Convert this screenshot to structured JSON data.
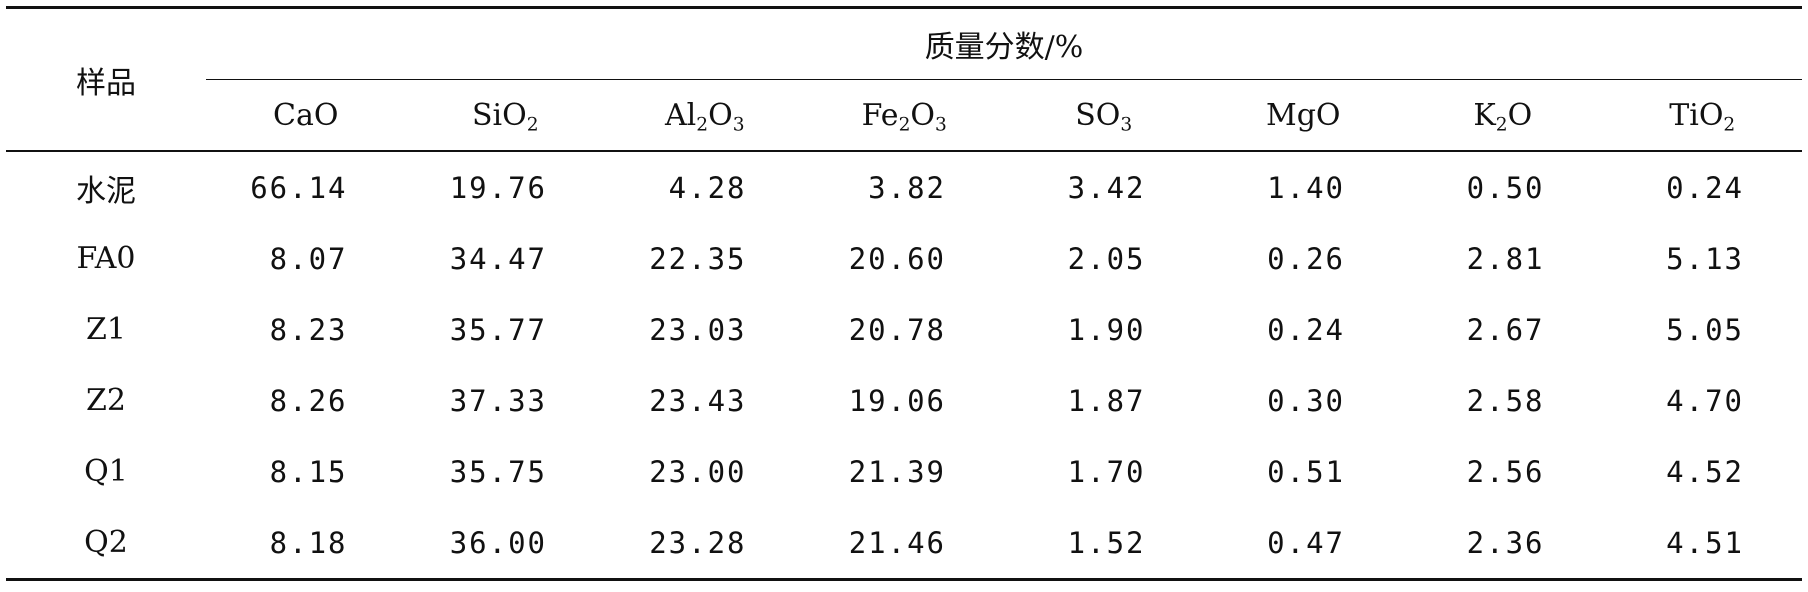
{
  "table": {
    "sample_header": "样品",
    "group_header": "质量分数/%",
    "columns": [
      {
        "base": "CaO",
        "sub": "",
        "tail": ""
      },
      {
        "base": "SiO",
        "sub": "2",
        "tail": ""
      },
      {
        "base": "Al",
        "sub": "2",
        "tail": "O",
        "sub2": "3"
      },
      {
        "base": "Fe",
        "sub": "2",
        "tail": "O",
        "sub2": "3"
      },
      {
        "base": "SO",
        "sub": "3",
        "tail": ""
      },
      {
        "base": "MgO",
        "sub": "",
        "tail": ""
      },
      {
        "base": "K",
        "sub": "2",
        "tail": "O"
      },
      {
        "base": "TiO",
        "sub": "2",
        "tail": ""
      }
    ],
    "rows": [
      {
        "sample": "水泥",
        "values": [
          "66.14",
          "19.76",
          "4.28",
          "3.82",
          "3.42",
          "1.40",
          "0.50",
          "0.24"
        ]
      },
      {
        "sample": "FA0",
        "values": [
          "8.07",
          "34.47",
          "22.35",
          "20.60",
          "2.05",
          "0.26",
          "2.81",
          "5.13"
        ]
      },
      {
        "sample": "Z1",
        "values": [
          "8.23",
          "35.77",
          "23.03",
          "20.78",
          "1.90",
          "0.24",
          "2.67",
          "5.05"
        ]
      },
      {
        "sample": "Z2",
        "values": [
          "8.26",
          "37.33",
          "23.43",
          "19.06",
          "1.87",
          "0.30",
          "2.58",
          "4.70"
        ]
      },
      {
        "sample": "Q1",
        "values": [
          "8.15",
          "35.75",
          "23.00",
          "21.39",
          "1.70",
          "0.51",
          "2.56",
          "4.52"
        ]
      },
      {
        "sample": "Q2",
        "values": [
          "8.18",
          "36.00",
          "23.28",
          "21.46",
          "1.52",
          "0.47",
          "2.36",
          "4.51"
        ]
      }
    ]
  }
}
